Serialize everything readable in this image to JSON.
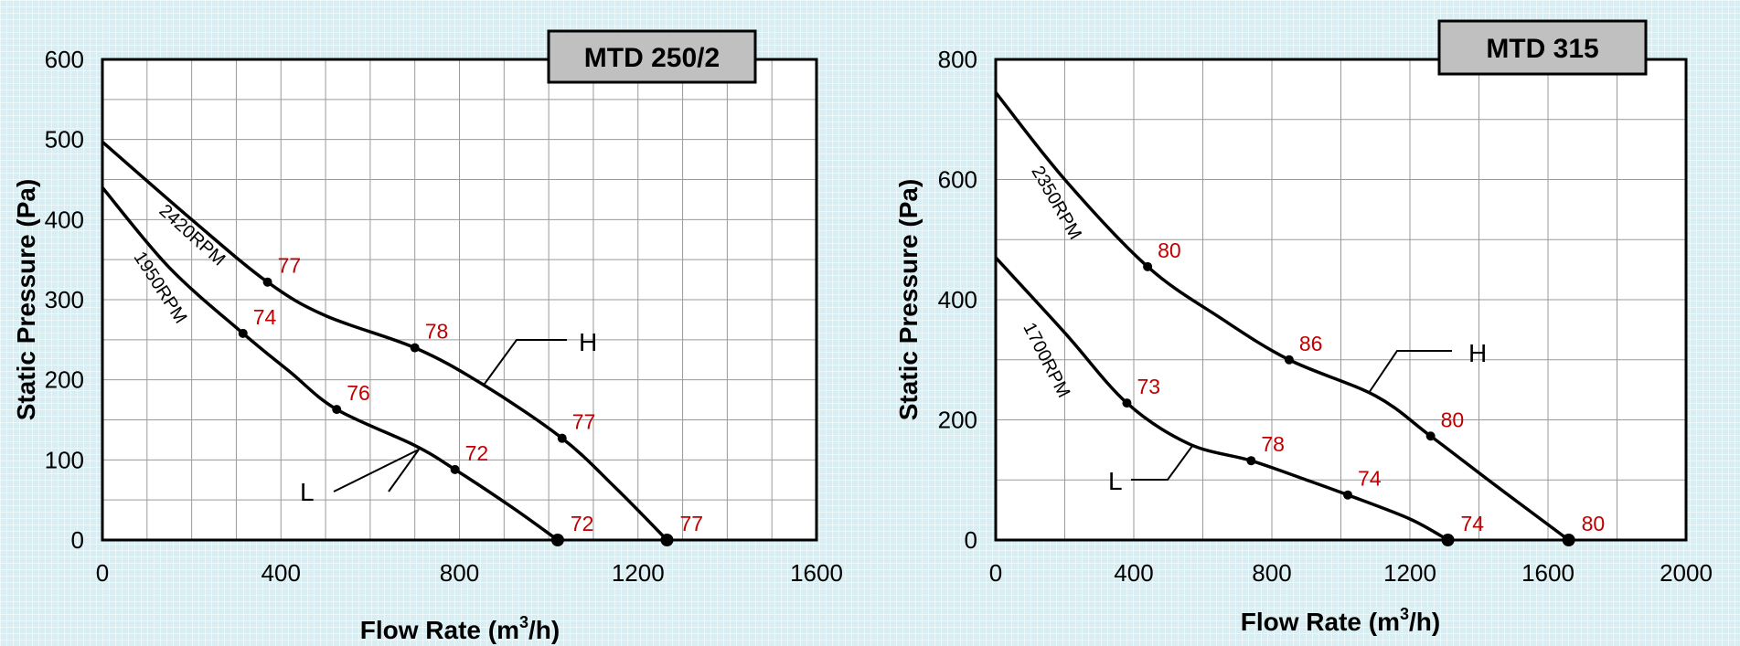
{
  "chart_data": [
    {
      "type": "line",
      "title": "MTD 250/2",
      "xlabel": "Flow Rate (m3/h)",
      "ylabel": "Static Pressure (Pa)",
      "xlim": [
        0,
        1600
      ],
      "ylim": [
        0,
        600
      ],
      "x_ticks": [
        "0",
        "400",
        "800",
        "1200",
        "1600"
      ],
      "y_ticks": [
        "0",
        "100",
        "200",
        "300",
        "400",
        "500",
        "600"
      ],
      "grid": true,
      "series": [
        {
          "name": "H",
          "rpm": "2420RPM",
          "curve": [
            [
              0,
              497
            ],
            [
              200,
              400
            ],
            [
              370,
              322
            ],
            [
              500,
              280
            ],
            [
              700,
              240
            ],
            [
              850,
              195
            ],
            [
              1030,
              127
            ],
            [
              1150,
              65
            ],
            [
              1265,
              0
            ]
          ],
          "points": [
            {
              "x": 370,
              "y": 322,
              "label": "77"
            },
            {
              "x": 700,
              "y": 240,
              "label": "78"
            },
            {
              "x": 1030,
              "y": 127,
              "label": "77"
            },
            {
              "x": 1265,
              "y": 0,
              "label": "77"
            }
          ]
        },
        {
          "name": "L",
          "rpm": "1950RPM",
          "curve": [
            [
              0,
              440
            ],
            [
              150,
              340
            ],
            [
              315,
              258
            ],
            [
              420,
              210
            ],
            [
              525,
              163
            ],
            [
              700,
              118
            ],
            [
              790,
              88
            ],
            [
              920,
              40
            ],
            [
              1020,
              0
            ]
          ],
          "points": [
            {
              "x": 315,
              "y": 258,
              "label": "74"
            },
            {
              "x": 525,
              "y": 163,
              "label": "76"
            },
            {
              "x": 790,
              "y": 88,
              "label": "72"
            },
            {
              "x": 1020,
              "y": 0,
              "label": "72"
            }
          ]
        }
      ]
    },
    {
      "type": "line",
      "title": "MTD 315",
      "xlabel": "Flow Rate (m3/h)",
      "ylabel": "Static Pressure (Pa)",
      "xlim": [
        0,
        2000
      ],
      "ylim": [
        0,
        800
      ],
      "x_ticks": [
        "0",
        "400",
        "800",
        "1200",
        "1600",
        "2000"
      ],
      "y_ticks": [
        "0",
        "200",
        "400",
        "600",
        "800"
      ],
      "grid": true,
      "series": [
        {
          "name": "H",
          "rpm": "2350RPM",
          "curve": [
            [
              0,
              745
            ],
            [
              200,
              600
            ],
            [
              440,
              455
            ],
            [
              650,
              370
            ],
            [
              850,
              300
            ],
            [
              1100,
              240
            ],
            [
              1260,
              173
            ],
            [
              1450,
              90
            ],
            [
              1660,
              0
            ]
          ],
          "points": [
            {
              "x": 440,
              "y": 455,
              "label": "80"
            },
            {
              "x": 850,
              "y": 300,
              "label": "86"
            },
            {
              "x": 1260,
              "y": 173,
              "label": "80"
            },
            {
              "x": 1660,
              "y": 0,
              "label": "80"
            }
          ]
        },
        {
          "name": "L",
          "rpm": "1700RPM",
          "curve": [
            [
              0,
              470
            ],
            [
              200,
              345
            ],
            [
              380,
              228
            ],
            [
              560,
              160
            ],
            [
              740,
              132
            ],
            [
              900,
              100
            ],
            [
              1020,
              75
            ],
            [
              1200,
              35
            ],
            [
              1310,
              0
            ]
          ],
          "points": [
            {
              "x": 380,
              "y": 228,
              "label": "73"
            },
            {
              "x": 740,
              "y": 132,
              "label": "78"
            },
            {
              "x": 1020,
              "y": 75,
              "label": "74"
            },
            {
              "x": 1310,
              "y": 0,
              "label": "74"
            }
          ]
        }
      ]
    }
  ]
}
